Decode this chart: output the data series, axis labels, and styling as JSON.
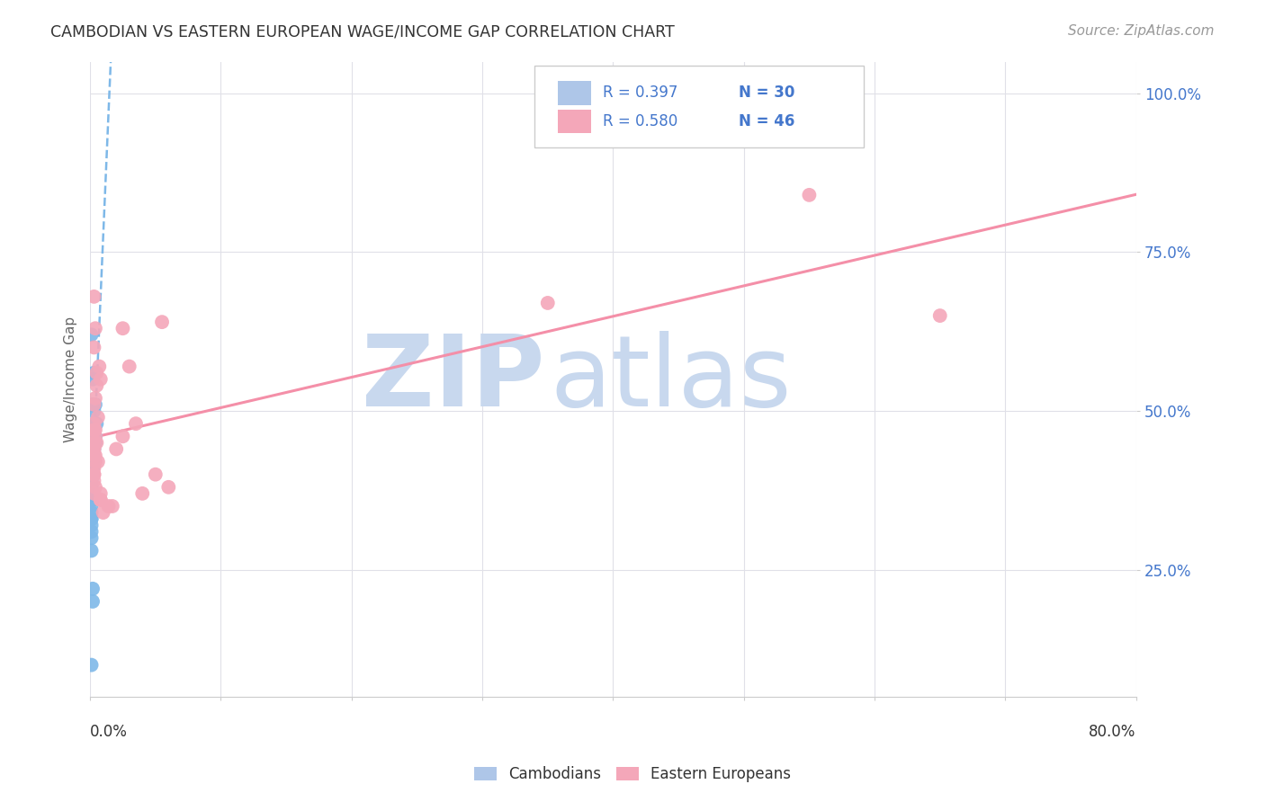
{
  "title": "CAMBODIAN VS EASTERN EUROPEAN WAGE/INCOME GAP CORRELATION CHART",
  "source": "Source: ZipAtlas.com",
  "ylabel": "Wage/Income Gap",
  "ytick_labels": [
    "25.0%",
    "50.0%",
    "75.0%",
    "100.0%"
  ],
  "ytick_values": [
    0.25,
    0.5,
    0.75,
    1.0
  ],
  "cambodian_scatter": [
    [
      0.001,
      0.62
    ],
    [
      0.002,
      0.55
    ],
    [
      0.003,
      0.56
    ],
    [
      0.004,
      0.51
    ],
    [
      0.002,
      0.51
    ],
    [
      0.003,
      0.5
    ],
    [
      0.003,
      0.48
    ],
    [
      0.005,
      0.48
    ],
    [
      0.004,
      0.46
    ],
    [
      0.004,
      0.45
    ],
    [
      0.003,
      0.44
    ],
    [
      0.002,
      0.43
    ],
    [
      0.002,
      0.42
    ],
    [
      0.002,
      0.41
    ],
    [
      0.001,
      0.4
    ],
    [
      0.001,
      0.39
    ],
    [
      0.001,
      0.38
    ],
    [
      0.002,
      0.37
    ],
    [
      0.002,
      0.36
    ],
    [
      0.001,
      0.35
    ],
    [
      0.001,
      0.34
    ],
    [
      0.001,
      0.33
    ],
    [
      0.001,
      0.33
    ],
    [
      0.001,
      0.32
    ],
    [
      0.001,
      0.31
    ],
    [
      0.001,
      0.3
    ],
    [
      0.001,
      0.28
    ],
    [
      0.002,
      0.22
    ],
    [
      0.002,
      0.2
    ],
    [
      0.001,
      0.1
    ]
  ],
  "eastern_scatter": [
    [
      0.003,
      0.68
    ],
    [
      0.004,
      0.63
    ],
    [
      0.003,
      0.6
    ],
    [
      0.007,
      0.57
    ],
    [
      0.005,
      0.56
    ],
    [
      0.008,
      0.55
    ],
    [
      0.005,
      0.54
    ],
    [
      0.004,
      0.52
    ],
    [
      0.003,
      0.51
    ],
    [
      0.006,
      0.49
    ],
    [
      0.003,
      0.48
    ],
    [
      0.004,
      0.47
    ],
    [
      0.003,
      0.47
    ],
    [
      0.004,
      0.46
    ],
    [
      0.003,
      0.45
    ],
    [
      0.005,
      0.45
    ],
    [
      0.003,
      0.44
    ],
    [
      0.003,
      0.44
    ],
    [
      0.003,
      0.43
    ],
    [
      0.004,
      0.43
    ],
    [
      0.004,
      0.42
    ],
    [
      0.006,
      0.42
    ],
    [
      0.003,
      0.41
    ],
    [
      0.003,
      0.4
    ],
    [
      0.003,
      0.4
    ],
    [
      0.003,
      0.39
    ],
    [
      0.004,
      0.38
    ],
    [
      0.003,
      0.37
    ],
    [
      0.008,
      0.37
    ],
    [
      0.008,
      0.36
    ],
    [
      0.008,
      0.36
    ],
    [
      0.014,
      0.35
    ],
    [
      0.01,
      0.34
    ],
    [
      0.017,
      0.35
    ],
    [
      0.02,
      0.44
    ],
    [
      0.025,
      0.46
    ],
    [
      0.025,
      0.63
    ],
    [
      0.03,
      0.57
    ],
    [
      0.035,
      0.48
    ],
    [
      0.04,
      0.37
    ],
    [
      0.05,
      0.4
    ],
    [
      0.055,
      0.64
    ],
    [
      0.06,
      0.38
    ],
    [
      0.55,
      0.84
    ],
    [
      0.35,
      0.67
    ],
    [
      0.65,
      0.65
    ]
  ],
  "cambodian_color": "#7eb8e8",
  "eastern_color": "#f4a7b9",
  "cambodian_trend_color": "#7eb8e8",
  "eastern_trend_color": "#f48fa8",
  "background_color": "#ffffff",
  "grid_color": "#e0e0e8",
  "watermark_zip": "ZIP",
  "watermark_atlas": "atlas",
  "watermark_color_zip": "#c8d8ee",
  "watermark_color_atlas": "#c8d8ee",
  "xlim": [
    0.0,
    0.8
  ],
  "ylim": [
    0.05,
    1.05
  ],
  "legend_r1": "R = 0.397",
  "legend_n1": "N = 30",
  "legend_r2": "R = 0.580",
  "legend_n2": "N = 46",
  "legend_color1": "#aec6e8",
  "legend_color2": "#f4a7b9",
  "legend_text_color": "#4477cc",
  "xtick_positions": [
    0.0,
    0.1,
    0.2,
    0.3,
    0.4,
    0.5,
    0.6,
    0.7,
    0.8
  ]
}
